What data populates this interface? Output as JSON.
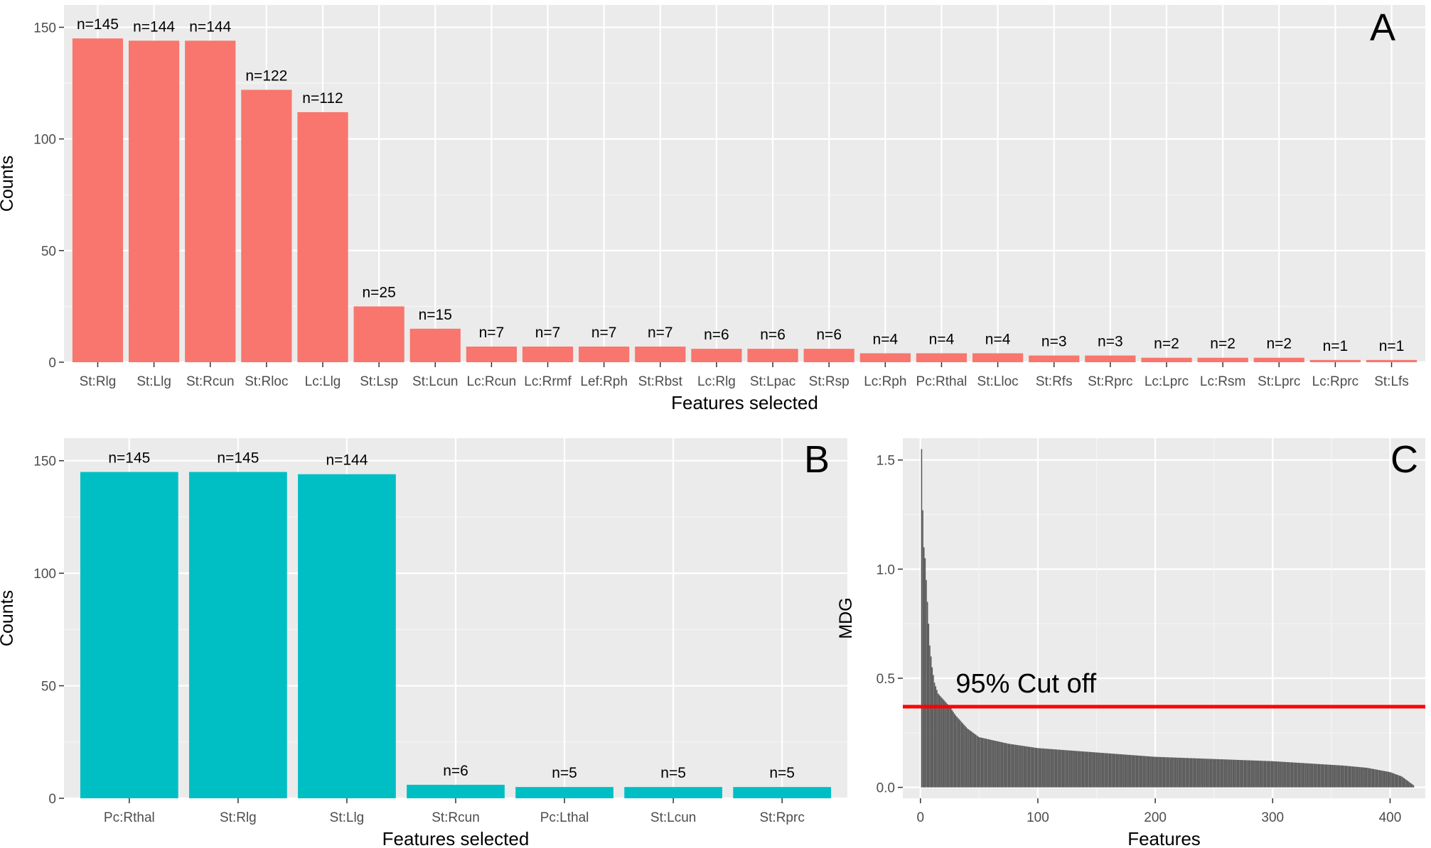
{
  "chart_data": [
    {
      "panel": "A",
      "type": "bar",
      "xlabel": "Features selected",
      "ylabel": "Counts",
      "ylim": [
        0,
        160
      ],
      "yticks": [
        0,
        50,
        100,
        150
      ],
      "grid": true,
      "bar_color": "#F8766D",
      "categories": [
        "St:Rlg",
        "St:Llg",
        "St:Rcun",
        "St:Rloc",
        "Lc:Llg",
        "St:Lsp",
        "St:Lcun",
        "Lc:Rcun",
        "Lc:Rrmf",
        "Lef:Rph",
        "St:Rbst",
        "Lc:Rlg",
        "St:Lpac",
        "St:Rsp",
        "Lc:Rph",
        "Pc:Rthal",
        "St:Lloc",
        "St:Rfs",
        "St:Rprc",
        "Lc:Lprc",
        "Lc:Rsm",
        "St:Lprc",
        "Lc:Rprc",
        "St:Lfs"
      ],
      "values": [
        145,
        144,
        144,
        122,
        112,
        25,
        15,
        7,
        7,
        7,
        7,
        6,
        6,
        6,
        4,
        4,
        4,
        3,
        3,
        2,
        2,
        2,
        1,
        1
      ],
      "labels": [
        "n=145",
        "n=144",
        "n=144",
        "n=122",
        "n=112",
        "n=25",
        "n=15",
        "n=7",
        "n=7",
        "n=7",
        "n=7",
        "n=6",
        "n=6",
        "n=6",
        "n=4",
        "n=4",
        "n=4",
        "n=3",
        "n=3",
        "n=2",
        "n=2",
        "n=2",
        "n=1",
        "n=1"
      ]
    },
    {
      "panel": "B",
      "type": "bar",
      "xlabel": "Features selected",
      "ylabel": "Counts",
      "ylim": [
        0,
        160
      ],
      "yticks": [
        0,
        50,
        100,
        150
      ],
      "grid": true,
      "bar_color": "#00BFC4",
      "categories": [
        "Pc:Rthal",
        "St:Rlg",
        "St:Llg",
        "St:Rcun",
        "Pc:Lthal",
        "St:Lcun",
        "St:Rprc"
      ],
      "values": [
        145,
        145,
        144,
        6,
        5,
        5,
        5
      ],
      "labels": [
        "n=145",
        "n=145",
        "n=144",
        "n=6",
        "n=5",
        "n=5",
        "n=5"
      ]
    },
    {
      "panel": "C",
      "type": "bar",
      "xlabel": "Features",
      "ylabel": "MDG",
      "xlim": [
        -15,
        430
      ],
      "ylim": [
        -0.05,
        1.6
      ],
      "xticks": [
        0,
        100,
        200,
        300,
        400
      ],
      "yticks": [
        0.0,
        0.5,
        1.0,
        1.5
      ],
      "grid": true,
      "bar_color": "#595959",
      "cutoff_color": "#FF0000",
      "cutoff_value": 0.37,
      "cutoff_label": "95% Cut off",
      "n_features": 420,
      "curve_x": [
        1,
        2,
        3,
        4,
        5,
        6,
        7,
        8,
        10,
        12,
        15,
        20,
        25,
        30,
        40,
        50,
        75,
        100,
        150,
        200,
        250,
        300,
        330,
        360,
        380,
        400,
        410,
        415,
        420
      ],
      "curve_y": [
        1.55,
        1.27,
        1.1,
        1.05,
        0.95,
        0.85,
        0.75,
        0.65,
        0.55,
        0.48,
        0.43,
        0.4,
        0.37,
        0.33,
        0.27,
        0.23,
        0.2,
        0.18,
        0.16,
        0.14,
        0.13,
        0.12,
        0.11,
        0.1,
        0.09,
        0.07,
        0.05,
        0.03,
        0.01
      ]
    }
  ],
  "panel_labels": {
    "a": "A",
    "b": "B",
    "c": "C"
  },
  "annotation": "95% Cut off",
  "tick_format": {
    "a": "integer",
    "b": "integer",
    "c": "one-decimal"
  }
}
